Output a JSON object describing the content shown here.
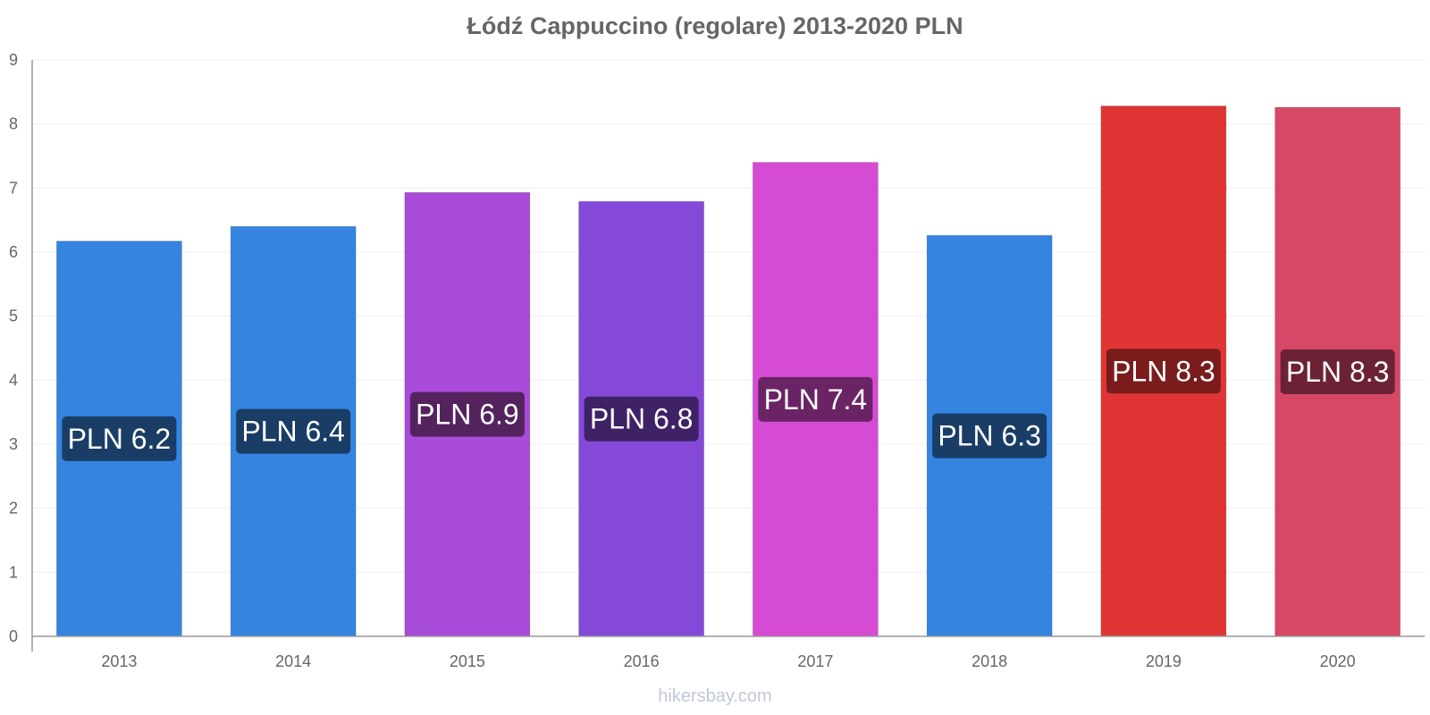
{
  "chart_data": {
    "type": "bar",
    "title": "Łódź Cappuccino (regolare) 2013-2020 PLN",
    "categories": [
      "2013",
      "2014",
      "2015",
      "2016",
      "2017",
      "2018",
      "2019",
      "2020"
    ],
    "values": [
      6.17,
      6.4,
      6.93,
      6.79,
      7.4,
      6.26,
      8.28,
      8.26
    ],
    "data_labels": [
      "PLN 6.2",
      "PLN 6.4",
      "PLN 6.9",
      "PLN 6.8",
      "PLN 7.4",
      "PLN 6.3",
      "PLN 8.3",
      "PLN 8.3"
    ],
    "bar_colors": [
      "#3584e0",
      "#3584e0",
      "#a94bd9",
      "#8549d9",
      "#d64bd4",
      "#3584e0",
      "#e03535",
      "#d64866"
    ],
    "label_colors": [
      "#1a3d66",
      "#1a3d66",
      "#54235e",
      "#3f2166",
      "#6a2466",
      "#1a3d66",
      "#7a1c1c",
      "#6b2234"
    ],
    "ylim": [
      0,
      9
    ],
    "yticks": [
      0,
      1,
      2,
      3,
      4,
      5,
      6,
      7,
      8,
      9
    ],
    "xlabel": "",
    "ylabel": "",
    "grid": true,
    "legend": "none"
  },
  "watermark": "hikersbay.com"
}
